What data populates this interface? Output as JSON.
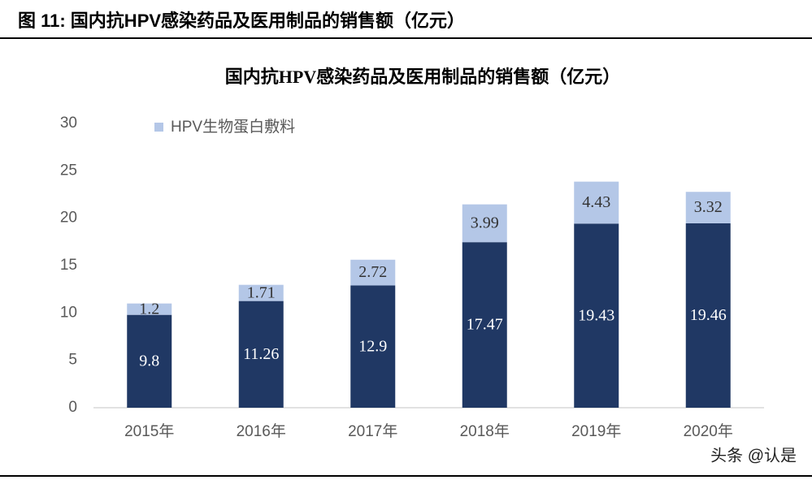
{
  "header": "图 11: 国内抗HPV感染药品及医用制品的销售额（亿元）",
  "watermark": "头条 @认是",
  "chart_data": {
    "type": "stacked_bar",
    "title": "国内抗HPV感染药品及医用制品的销售额（亿元）",
    "categories": [
      "2015年",
      "2016年",
      "2017年",
      "2018年",
      "2019年",
      "2020年"
    ],
    "series": [
      {
        "color": "#203864",
        "label_color": "#ffffff",
        "values": [
          9.8,
          11.26,
          12.9,
          17.47,
          19.43,
          19.46
        ]
      },
      {
        "name": "HPV生物蛋白敷料",
        "color": "#b4c7e7",
        "label_color": "#333333",
        "values": [
          1.2,
          1.71,
          2.72,
          3.99,
          4.43,
          3.32
        ]
      }
    ],
    "ylim": [
      0,
      30
    ],
    "yticks": [
      0,
      5,
      10,
      15,
      20,
      25,
      30
    ],
    "grid": false,
    "legend": "top-left"
  }
}
